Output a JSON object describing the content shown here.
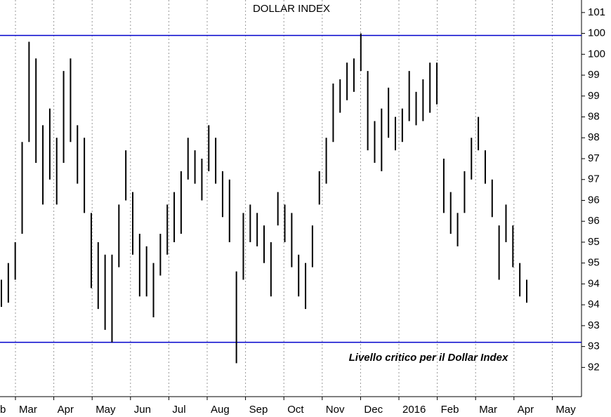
{
  "chart_data": {
    "type": "range-bar",
    "title": "DOLLAR INDEX",
    "annotation": "Livello critico per il Dollar Index",
    "categories": [
      "b",
      "Mar",
      "Apr",
      "May",
      "Jun",
      "Jul",
      "Aug",
      "Sep",
      "Oct",
      "Nov",
      "Dec",
      "2016",
      "Feb",
      "Mar",
      "Apr",
      "May"
    ],
    "high": [
      94.6,
      95.0,
      95.5,
      97.9,
      100.3,
      99.9,
      98.3,
      98.7,
      98.0,
      99.6,
      99.9,
      98.3,
      98.0,
      96.2,
      95.5,
      95.2,
      95.2,
      96.4,
      97.7,
      96.7,
      95.7,
      95.4,
      95.0,
      95.7,
      96.4,
      96.7,
      97.2,
      98.0,
      97.7,
      97.5,
      98.3,
      98.0,
      97.2,
      97.0,
      94.8,
      96.2,
      96.4,
      96.2,
      95.9,
      95.5,
      96.7,
      96.4,
      96.2,
      95.2,
      95.0,
      95.9,
      97.2,
      98.0,
      99.3,
      99.4,
      99.8,
      99.9,
      100.5,
      99.6,
      98.4,
      98.7,
      99.2,
      98.5,
      98.7,
      99.6,
      99.1,
      99.4,
      99.8,
      99.8,
      97.5,
      96.7,
      96.2,
      97.2,
      98.0,
      98.5,
      97.7,
      97.0,
      95.9,
      96.4,
      95.9,
      95.0,
      94.6
    ],
    "low": [
      93.95,
      94.05,
      94.6,
      95.7,
      97.9,
      97.4,
      96.4,
      97.0,
      96.4,
      97.4,
      97.9,
      96.9,
      96.2,
      94.4,
      93.9,
      93.4,
      93.1,
      94.9,
      96.5,
      95.2,
      94.2,
      94.2,
      93.7,
      94.7,
      95.2,
      95.5,
      95.7,
      97.0,
      96.9,
      96.5,
      97.2,
      96.9,
      96.1,
      95.5,
      92.6,
      94.6,
      95.5,
      95.4,
      95.0,
      94.2,
      95.9,
      95.5,
      94.9,
      94.2,
      93.9,
      94.9,
      96.4,
      96.9,
      97.9,
      98.6,
      98.9,
      99.1,
      99.6,
      97.7,
      97.4,
      97.2,
      98.0,
      97.7,
      97.9,
      98.4,
      98.3,
      98.4,
      98.6,
      98.8,
      96.2,
      95.7,
      95.4,
      96.2,
      97.0,
      97.7,
      96.9,
      96.1,
      94.6,
      95.5,
      94.9,
      94.2,
      94.05
    ],
    "color": "#000000",
    "line_color": "#0000cc",
    "hlines": [
      100.45,
      93.1
    ],
    "ylim": [
      91.8,
      101.3
    ],
    "yticks": [
      101,
      {
        "value": 100.5,
        "label": "100"
      },
      100,
      {
        "value": 99.5,
        "label": "99"
      },
      99,
      {
        "value": 98.5,
        "label": "98"
      },
      98,
      {
        "value": 97.5,
        "label": "97"
      },
      97,
      {
        "value": 96.5,
        "label": "96"
      },
      96,
      {
        "value": 95.5,
        "label": "95"
      },
      95,
      {
        "value": 94.5,
        "label": "94"
      },
      94,
      {
        "value": 93.5,
        "label": "93"
      },
      93,
      {
        "value": 92.5,
        "label": "92"
      }
    ],
    "grid": true
  }
}
